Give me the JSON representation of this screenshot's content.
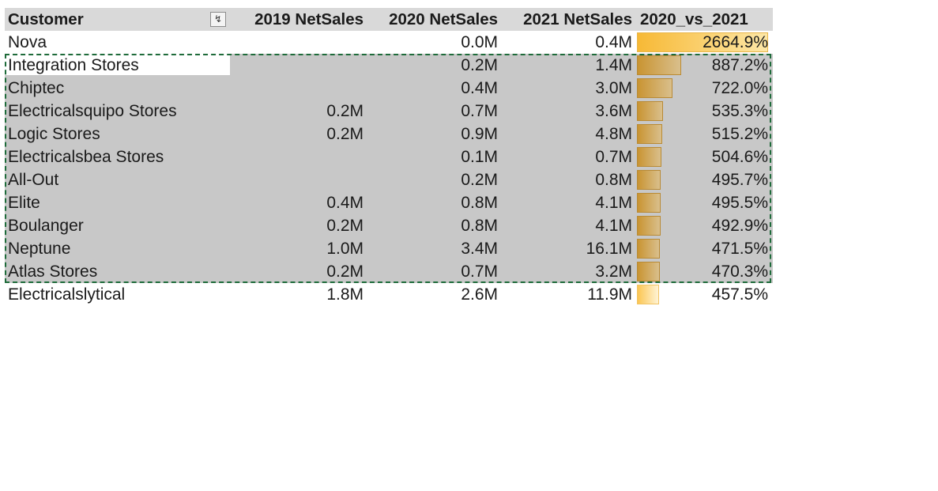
{
  "headers": {
    "customer": "Customer",
    "y2019": "2019 NetSales",
    "y2020": "2020 NetSales",
    "y2021": "2021 NetSales",
    "cmp": "2020_vs_2021",
    "filter_icon": "sort-descending-filter-icon"
  },
  "rows": [
    {
      "customer": "Nova",
      "y2019": "",
      "y2020": "0.0M",
      "y2021": "0.4M",
      "cmp": "2664.9%",
      "cmp_value": 2664.9,
      "selected": false
    },
    {
      "customer": "Integration Stores",
      "y2019": "",
      "y2020": "0.2M",
      "y2021": "1.4M",
      "cmp": "887.2%",
      "cmp_value": 887.2,
      "selected": true
    },
    {
      "customer": "Chiptec",
      "y2019": "",
      "y2020": "0.4M",
      "y2021": "3.0M",
      "cmp": "722.0%",
      "cmp_value": 722.0,
      "selected": true
    },
    {
      "customer": "Electricalsquipo Stores",
      "y2019": "0.2M",
      "y2020": "0.7M",
      "y2021": "3.6M",
      "cmp": "535.3%",
      "cmp_value": 535.3,
      "selected": true
    },
    {
      "customer": "Logic Stores",
      "y2019": "0.2M",
      "y2020": "0.9M",
      "y2021": "4.8M",
      "cmp": "515.2%",
      "cmp_value": 515.2,
      "selected": true
    },
    {
      "customer": "Electricalsbea Stores",
      "y2019": "",
      "y2020": "0.1M",
      "y2021": "0.7M",
      "cmp": "504.6%",
      "cmp_value": 504.6,
      "selected": true
    },
    {
      "customer": "All-Out",
      "y2019": "",
      "y2020": "0.2M",
      "y2021": "0.8M",
      "cmp": "495.7%",
      "cmp_value": 495.7,
      "selected": true
    },
    {
      "customer": "Elite",
      "y2019": "0.4M",
      "y2020": "0.8M",
      "y2021": "4.1M",
      "cmp": "495.5%",
      "cmp_value": 495.5,
      "selected": true
    },
    {
      "customer": "Boulanger",
      "y2019": "0.2M",
      "y2020": "0.8M",
      "y2021": "4.1M",
      "cmp": "492.9%",
      "cmp_value": 492.9,
      "selected": true
    },
    {
      "customer": "Neptune",
      "y2019": "1.0M",
      "y2020": "3.4M",
      "y2021": "16.1M",
      "cmp": "471.5%",
      "cmp_value": 471.5,
      "selected": true
    },
    {
      "customer": "Atlas Stores",
      "y2019": "0.2M",
      "y2020": "0.7M",
      "y2021": "3.2M",
      "cmp": "470.3%",
      "cmp_value": 470.3,
      "selected": true
    },
    {
      "customer": "Electricalslytical",
      "y2019": "1.8M",
      "y2020": "2.6M",
      "y2021": "11.9M",
      "cmp": "457.5%",
      "cmp_value": 457.5,
      "selected": false
    }
  ],
  "data_bar": {
    "max_value": 2664.9,
    "colors": {
      "top": "#f7b936",
      "selected": "#c99432",
      "last": "#fbc653"
    }
  },
  "selection_border_color": "#1e6b3a"
}
